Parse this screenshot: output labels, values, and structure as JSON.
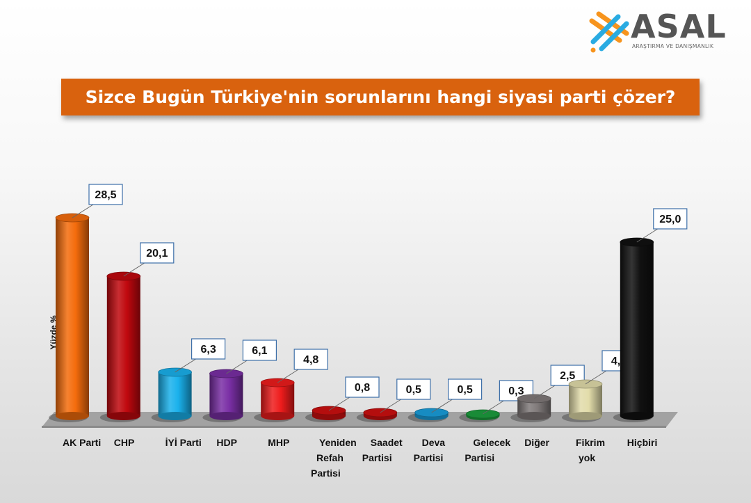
{
  "brand": {
    "name": "ASAL",
    "tagline": "ARAŞTIRMA VE DANIŞMANLIK",
    "colors": {
      "orange": "#f7941d",
      "blue": "#29abe2",
      "gray": "#555555"
    }
  },
  "title": "Sizce Bugün Türkiye'nin sorunlarını hangi siyasi parti çözer?",
  "chart_data": {
    "type": "bar",
    "ylabel": "Yüzde %",
    "xlabel": "",
    "ylim": [
      0,
      30
    ],
    "grid": false,
    "legend": "none",
    "categories": [
      [
        "AK Parti"
      ],
      [
        "CHP"
      ],
      [
        "İYİ Parti"
      ],
      [
        "HDP"
      ],
      [
        "MHP"
      ],
      [
        "Yeniden",
        "Refah",
        "Partisi"
      ],
      [
        "Saadet",
        "Partisi"
      ],
      [
        "Deva",
        "Partisi"
      ],
      [
        "Gelecek",
        "Partisi"
      ],
      [
        "Diğer"
      ],
      [
        "Fikrim",
        "yok"
      ],
      [
        "Hiçbiri"
      ]
    ],
    "values": [
      28.5,
      20.1,
      6.3,
      6.1,
      4.8,
      0.8,
      0.5,
      0.5,
      0.3,
      2.5,
      4.6,
      25.0
    ],
    "value_labels": [
      "28,5",
      "20,1",
      "6,3",
      "6,1",
      "4,8",
      "0,8",
      "0,5",
      "0,5",
      "0,3",
      "2,5",
      "4,6",
      "25,0"
    ],
    "colors": [
      "#f46c0c",
      "#c0080e",
      "#1ab1ec",
      "#7a2fa5",
      "#ee1c1c",
      "#cc1010",
      "#cc1010",
      "#1a9fdc",
      "#1c9e3e",
      "#807a7a",
      "#e2dcaa",
      "#111111"
    ]
  }
}
